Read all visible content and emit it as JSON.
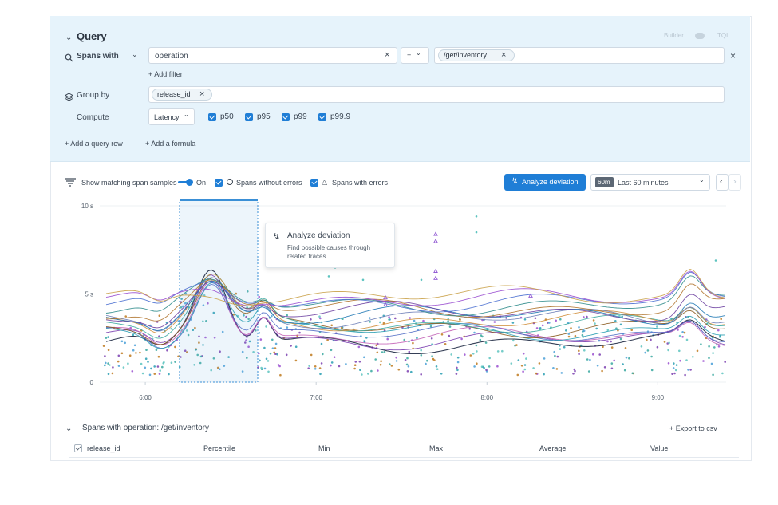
{
  "query": {
    "title": "Query",
    "builder_label": "Builder",
    "tql_label": "TQL",
    "spans_with_label": "Spans with",
    "filter_field": "operation",
    "filter_operator": "=",
    "filter_value": "/get/inventory",
    "add_filter_label": "+ Add filter",
    "group_by_label": "Group by",
    "group_by_value": "release_id",
    "compute_label": "Compute",
    "compute_select": "Latency",
    "percentiles": [
      {
        "label": "p50",
        "checked": true
      },
      {
        "label": "p95",
        "checked": true
      },
      {
        "label": "p99",
        "checked": true
      },
      {
        "label": "p99.9",
        "checked": true
      }
    ],
    "add_query_row_label": "+ Add a query row",
    "add_formula_label": "+ Add a formula"
  },
  "toolbar": {
    "show_samples_label": "Show matching span samples",
    "toggle_state": "On",
    "without_errors_label": "Spans without errors",
    "with_errors_label": "Spans with errors",
    "analyze_button": "Analyze deviation",
    "time_badge": "60m",
    "time_range": "Last 60 minutes"
  },
  "tooltip": {
    "title": "Analyze deviation",
    "body_line1": "Find possible causes through",
    "body_line2": "related traces"
  },
  "chart_data": {
    "type": "line",
    "title": "",
    "xlabel": "",
    "ylabel": "",
    "x_ticks": [
      "6:00",
      "7:00",
      "8:00",
      "9:00"
    ],
    "y_ticks": [
      "10 s",
      "5 s",
      "0"
    ],
    "ylim": [
      0,
      10
    ],
    "y_unit": "s",
    "selected_window": [
      "6:07",
      "6:34"
    ],
    "series_count": 16,
    "series_colors": [
      "#1f2a44",
      "#7b3fb0",
      "#c25fb5",
      "#5470c6",
      "#2a9fb3",
      "#8a5a1e",
      "#3aa8a0",
      "#d08e3a",
      "#6e7fb8",
      "#1f78b4",
      "#6b3fa0",
      "#b0742e",
      "#2e8b8b",
      "#4a6fd0",
      "#9a4fd0",
      "#caa24a"
    ],
    "samples": [
      {
        "name": "Spans without errors",
        "marker": "circle"
      },
      {
        "name": "Spans with errors",
        "marker": "triangle"
      }
    ],
    "x_start": "5:44",
    "x_end": "9:24"
  },
  "results": {
    "title": "Spans with operation: /get/inventory",
    "export_label": "+ Export to csv",
    "columns": [
      "release_id",
      "Percentile",
      "Min",
      "Max",
      "Average",
      "Value"
    ]
  }
}
